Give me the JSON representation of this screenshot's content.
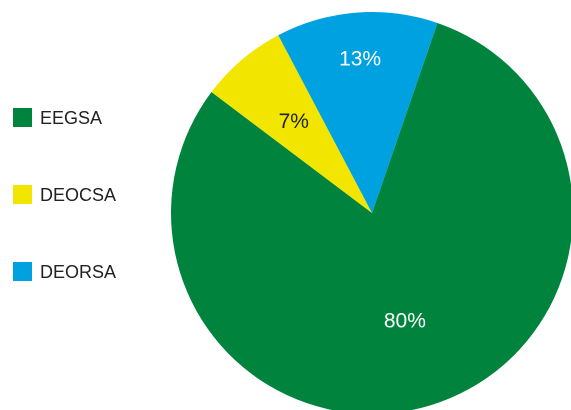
{
  "chart_data": {
    "type": "pie",
    "title": "",
    "legend_position": "left",
    "start_angle_deg": 19,
    "direction": "clockwise",
    "slices": [
      {
        "name": "EEGSA",
        "value": 80,
        "label": "80%",
        "color": "#00843d",
        "label_color": "#ffffff"
      },
      {
        "name": "DEOCSA",
        "value": 7,
        "label": "7%",
        "color": "#f2e600",
        "label_color": "#222222"
      },
      {
        "name": "DEORSA",
        "value": 13,
        "label": "13%",
        "color": "#00a1e0",
        "label_color": "#ffffff"
      }
    ]
  }
}
